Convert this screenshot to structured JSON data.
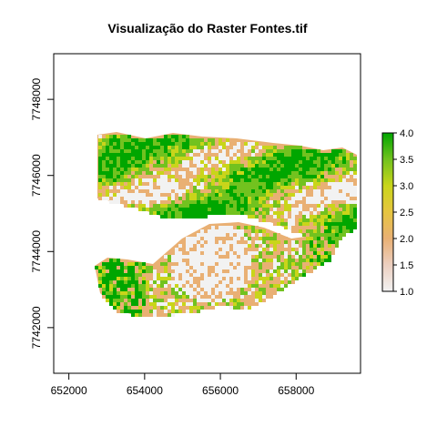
{
  "chart_data": {
    "type": "heatmap",
    "title": "Visualização do Raster Fontes.tif",
    "xlabel": "",
    "ylabel": "",
    "xlim": [
      651600,
      659700
    ],
    "ylim": [
      7740800,
      7749200
    ],
    "x_ticks": [
      652000,
      654000,
      656000,
      658000
    ],
    "x_tick_labels": [
      "652000",
      "654000",
      "656000",
      "658000"
    ],
    "y_ticks": [
      7742000,
      7744000,
      7746000,
      7748000
    ],
    "y_tick_labels": [
      "7742000",
      "7744000",
      "7746000",
      "7748000"
    ],
    "value_range": [
      1.0,
      4.0
    ],
    "legend_ticks": [
      1.0,
      1.5,
      2.0,
      2.5,
      3.0,
      3.5,
      4.0
    ],
    "legend_tick_labels": [
      "1.0",
      "1.5",
      "2.0",
      "2.5",
      "3.0",
      "3.5",
      "4.0"
    ],
    "legend_position": "right",
    "colors": {
      "1.0": "#f2f2f2",
      "1.5": "#eccfc0",
      "2.0": "#e9b074",
      "2.5": "#e6c540",
      "3.0": "#c9d51a",
      "3.5": "#72c21f",
      "4.0": "#00a600"
    },
    "grid": false
  }
}
